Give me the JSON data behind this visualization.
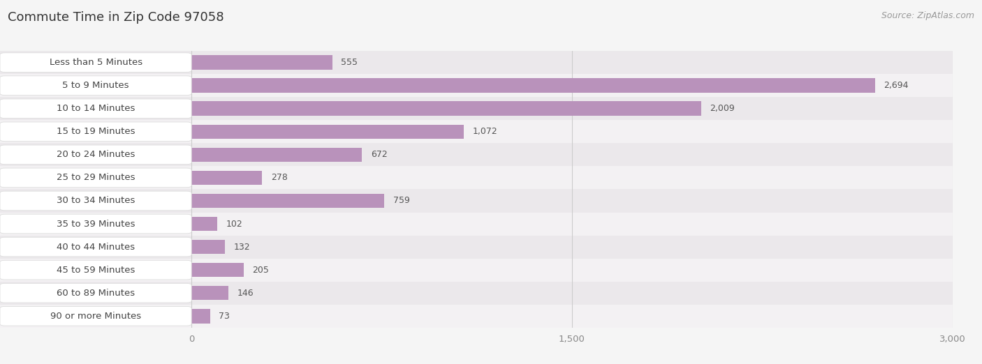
{
  "title": "Commute Time in Zip Code 97058",
  "source": "Source: ZipAtlas.com",
  "categories": [
    "Less than 5 Minutes",
    "5 to 9 Minutes",
    "10 to 14 Minutes",
    "15 to 19 Minutes",
    "20 to 24 Minutes",
    "25 to 29 Minutes",
    "30 to 34 Minutes",
    "35 to 39 Minutes",
    "40 to 44 Minutes",
    "45 to 59 Minutes",
    "60 to 89 Minutes",
    "90 or more Minutes"
  ],
  "values": [
    555,
    2694,
    2009,
    1072,
    672,
    278,
    759,
    102,
    132,
    205,
    146,
    73
  ],
  "bar_color": "#b992bb",
  "row_color_even": "#ebe8eb",
  "row_color_odd": "#f3f1f3",
  "background_color": "#f5f5f5",
  "xlim": [
    0,
    3000
  ],
  "xticks": [
    0,
    1500,
    3000
  ],
  "xtick_labels": [
    "0",
    "1,500",
    "3,000"
  ],
  "title_fontsize": 13,
  "label_fontsize": 9.5,
  "value_fontsize": 9,
  "source_fontsize": 9,
  "title_color": "#333333",
  "label_color": "#444444",
  "value_color": "#555555",
  "source_color": "#999999",
  "tick_color": "#888888",
  "grid_color": "#cccccc",
  "label_box_facecolor": "#ffffff",
  "label_box_edgecolor": "#dddddd"
}
